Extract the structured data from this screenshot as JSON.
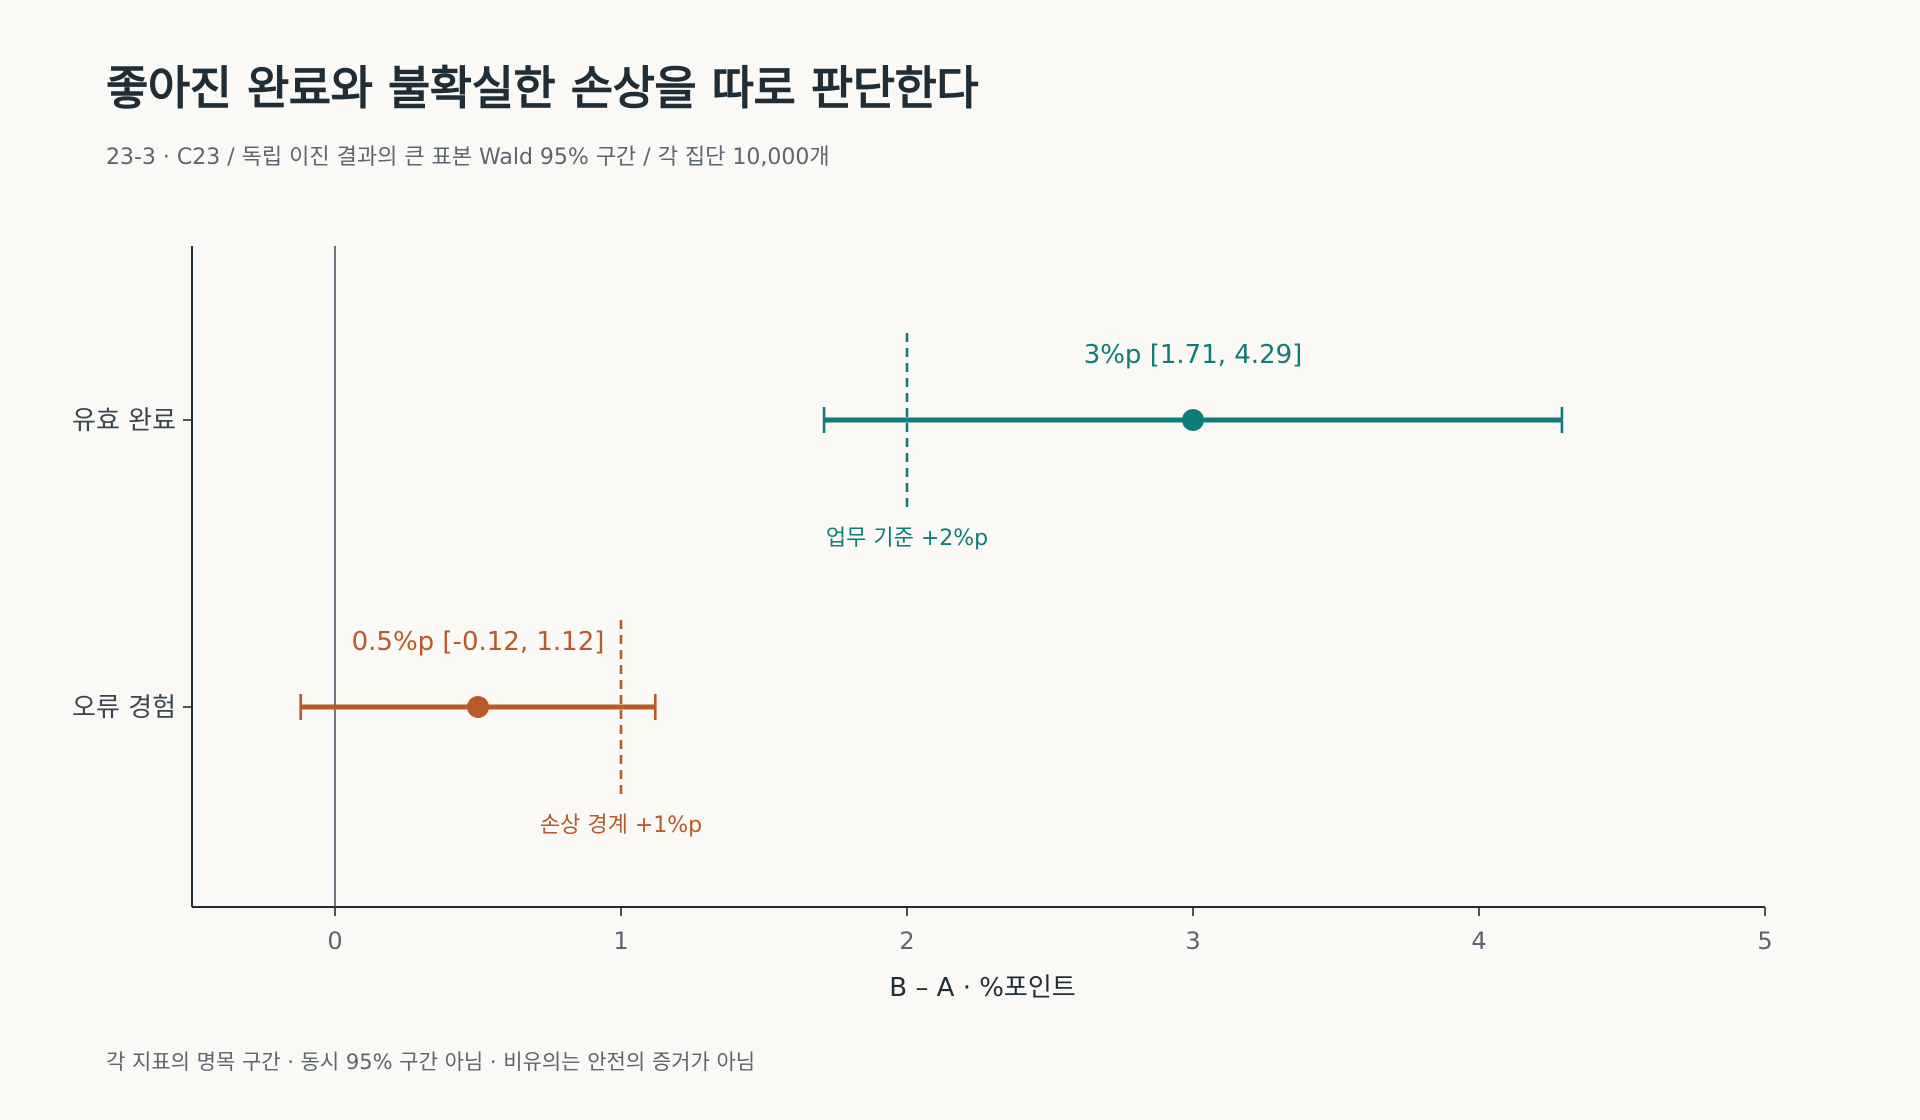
{
  "header": {
    "title": "좋아진 완료와 불확실한 손상을 따로 판단한다",
    "subtitle": "23-3 · C23 / 독립 이진 결과의 큰 표본 Wald 95% 구간 / 각 집단 10,000개"
  },
  "footnote": "각 지표의 명목 구간 · 동시 95% 구간 아님 · 비유의는 안전의 증거가 아님",
  "chart_data": {
    "type": "forest",
    "xlabel": "B – A · %포인트",
    "xlim": [
      -0.5,
      5
    ],
    "xticks": [
      0,
      1,
      2,
      3,
      4,
      5
    ],
    "xtick_labels": [
      "0",
      "1",
      "2",
      "3",
      "4",
      "5"
    ],
    "reference_line": 0,
    "grid": false,
    "rows": [
      {
        "category": "유효 완료",
        "estimate": 3,
        "ci_low": 1.71,
        "ci_high": 4.29,
        "label": "3%p [1.71, 4.29]",
        "color": "#0e7c78",
        "threshold": 2,
        "threshold_label": "업무 기준 +2%p"
      },
      {
        "category": "오류 경험",
        "estimate": 0.5,
        "ci_low": -0.12,
        "ci_high": 1.12,
        "label": "0.5%p [-0.12, 1.12]",
        "color": "#b85a2a",
        "threshold": 1,
        "threshold_label": "손상 경계 +1%p"
      }
    ],
    "colors": {
      "axis": "#1f2d36",
      "zero_line": "#4a5660"
    }
  }
}
